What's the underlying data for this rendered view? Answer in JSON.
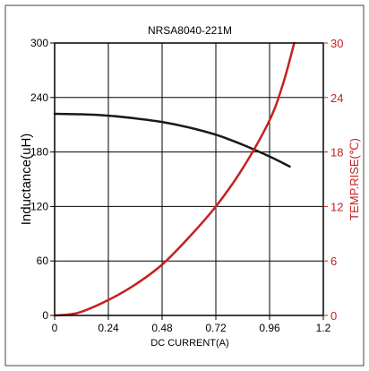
{
  "chart_data": {
    "type": "line",
    "title": "NRSA8040-221M",
    "xlabel": "DC CURRENT(A)",
    "ylabel_left": "Inductance(uH)",
    "ylabel_right": "TEMP.RISE(℃)",
    "xlim": [
      0,
      1.2
    ],
    "ylim_left": [
      0,
      300
    ],
    "ylim_right": [
      0,
      30
    ],
    "x_ticks": [
      "0",
      "0.24",
      "0.48",
      "0.72",
      "0.96",
      "1.2"
    ],
    "y_ticks_left": [
      "0",
      "60",
      "120",
      "180",
      "240",
      "300"
    ],
    "y_ticks_right": [
      "0",
      "6",
      "12",
      "18",
      "24",
      "30"
    ],
    "grid": true,
    "colors": {
      "inductance": "#1a1a1a",
      "temp": "#c62020",
      "grid": "#000000"
    },
    "series": [
      {
        "axis": "left",
        "color": "#1a1a1a",
        "x": [
          0,
          0.12,
          0.24,
          0.36,
          0.48,
          0.6,
          0.72,
          0.84,
          0.96,
          1.05
        ],
        "y": [
          222,
          221.5,
          220,
          217,
          213,
          207,
          199,
          188,
          175,
          164
        ]
      },
      {
        "axis": "right",
        "color": "#c62020",
        "x": [
          0,
          0.06,
          0.12,
          0.24,
          0.36,
          0.48,
          0.6,
          0.72,
          0.84,
          0.96,
          1.02,
          1.07
        ],
        "y": [
          0,
          0.1,
          0.4,
          1.7,
          3.4,
          5.6,
          8.6,
          12.0,
          16.2,
          21.5,
          25.5,
          30
        ]
      }
    ]
  }
}
